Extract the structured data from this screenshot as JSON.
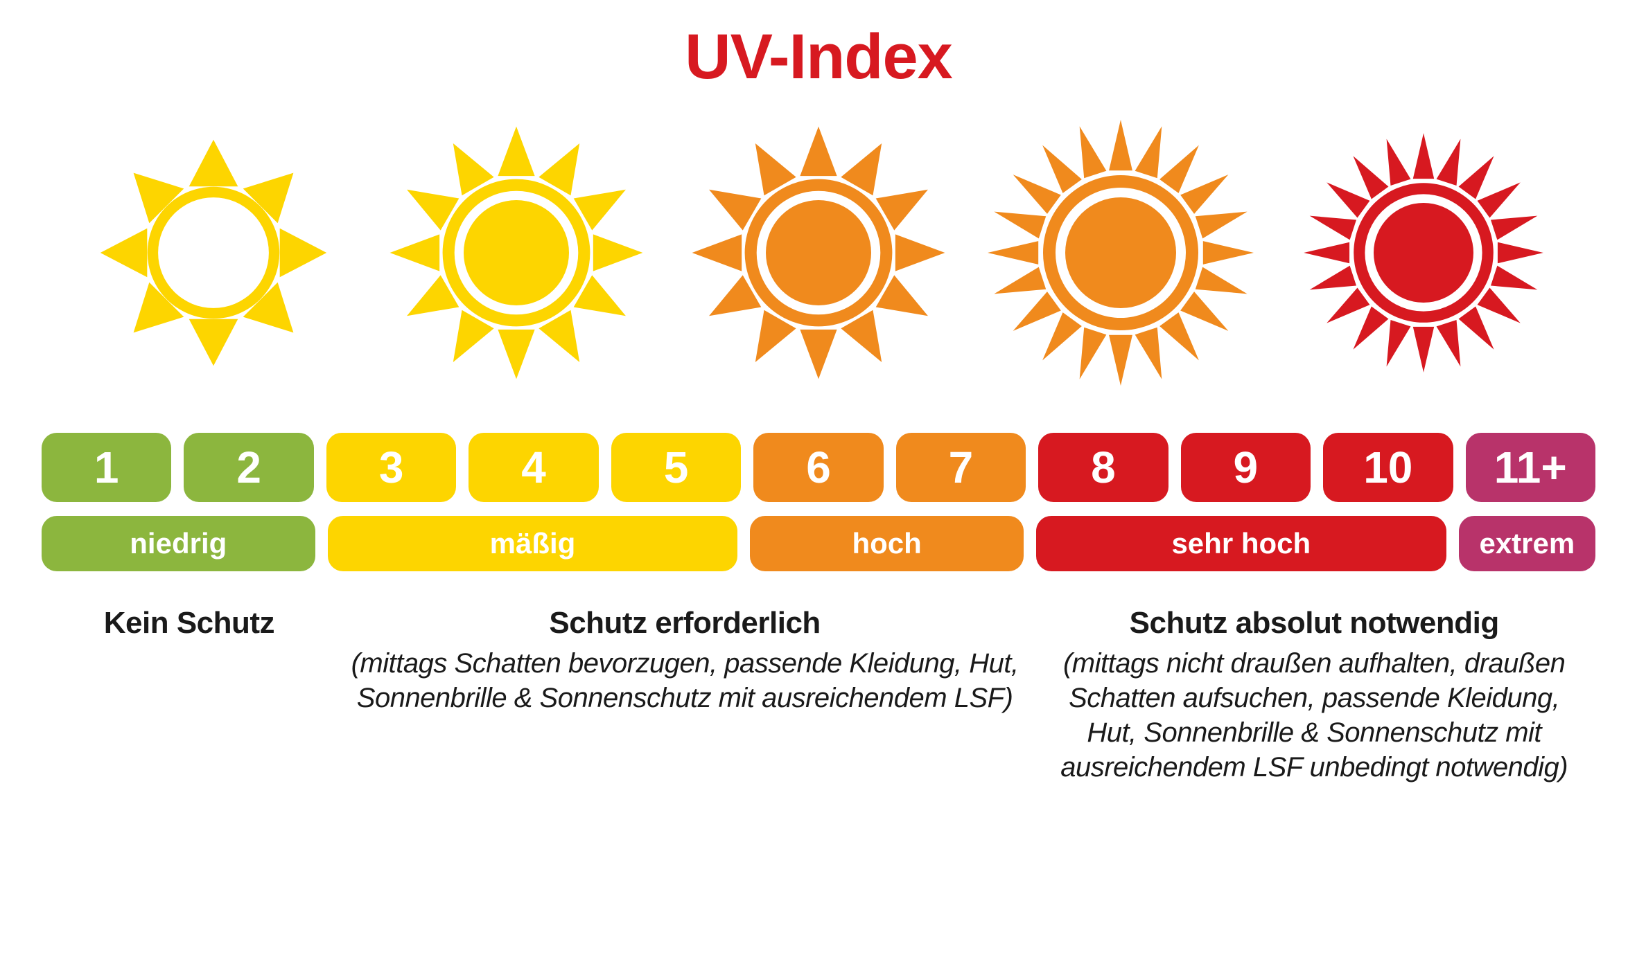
{
  "title": {
    "text": "UV-Index",
    "color": "#d71920"
  },
  "colors": {
    "green": "#8cb63e",
    "yellow": "#fdd500",
    "orange": "#f08a1d",
    "red": "#d71920",
    "purple": "#b8336a",
    "text": "#1a1a1a",
    "white": "#ffffff"
  },
  "suns": [
    {
      "rays": 8,
      "ray_shape": "triangle",
      "ring_color": "#fdd500",
      "center_color": "#ffffff",
      "size": 340
    },
    {
      "rays": 12,
      "ray_shape": "triangle",
      "ring_color": "#fdd500",
      "center_color": "#fdd500",
      "size": 380
    },
    {
      "rays": 12,
      "ray_shape": "triangle",
      "ring_color": "#f08a1d",
      "center_color": "#f08a1d",
      "size": 380
    },
    {
      "rays": 20,
      "ray_shape": "triangle",
      "ring_color": "#f08a1d",
      "center_color": "#f08a1d",
      "size": 400
    },
    {
      "rays": 20,
      "ray_shape": "triangle",
      "ring_color": "#d71920",
      "center_color": "#d71920",
      "size": 360
    }
  ],
  "scale": [
    {
      "value": "1",
      "color": "#8cb63e"
    },
    {
      "value": "2",
      "color": "#8cb63e"
    },
    {
      "value": "3",
      "color": "#fdd500"
    },
    {
      "value": "4",
      "color": "#fdd500"
    },
    {
      "value": "5",
      "color": "#fdd500"
    },
    {
      "value": "6",
      "color": "#f08a1d"
    },
    {
      "value": "7",
      "color": "#f08a1d"
    },
    {
      "value": "8",
      "color": "#d71920"
    },
    {
      "value": "9",
      "color": "#d71920"
    },
    {
      "value": "10",
      "color": "#d71920"
    },
    {
      "value": "11+",
      "color": "#b8336a"
    }
  ],
  "categories": [
    {
      "label": "niedrig",
      "color": "#8cb63e",
      "span": 2
    },
    {
      "label": "mäßig",
      "color": "#fdd500",
      "span": 3
    },
    {
      "label": "hoch",
      "color": "#f08a1d",
      "span": 2
    },
    {
      "label": "sehr hoch",
      "color": "#d71920",
      "span": 3
    },
    {
      "label": "extrem",
      "color": "#b8336a",
      "span": 1
    }
  ],
  "advice": [
    {
      "span": 2,
      "heading": "Kein Schutz",
      "detail": ""
    },
    {
      "span": 5,
      "heading": "Schutz erforderlich",
      "detail": "(mittags Schatten bevorzugen, passende Kleidung, Hut, Sonnenbrille & Sonnenschutz mit ausreichendem LSF)"
    },
    {
      "span": 4,
      "heading": "Schutz absolut notwendig",
      "detail": "(mittags nicht draußen aufhalten, draußen Schatten aufsuchen, passende Kleidung, Hut, Sonnenbrille & Sonnenschutz mit ausreichendem LSF unbedingt notwendig)"
    }
  ],
  "layout": {
    "pill_radius": 22,
    "pill_gap": 18,
    "total_units": 11
  }
}
